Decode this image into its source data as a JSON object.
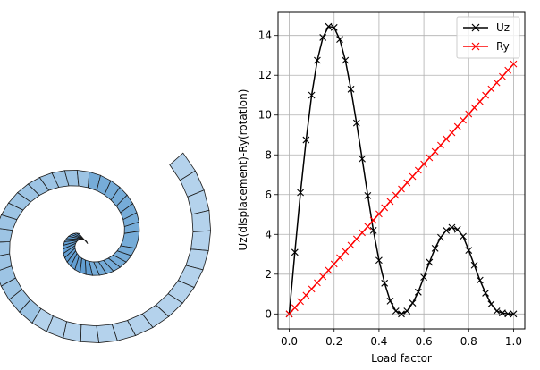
{
  "chart_data": {
    "type": "line",
    "xlabel": "Load factor",
    "ylabel": "Uz(displacement)-Ry(rotation)",
    "xlim": [
      -0.05,
      1.05
    ],
    "ylim": [
      -0.75,
      15.2
    ],
    "xticks": [
      0.0,
      0.2,
      0.4,
      0.6,
      0.8,
      1.0
    ],
    "xtick_labels": [
      "0.0",
      "0.2",
      "0.4",
      "0.6",
      "0.8",
      "1.0"
    ],
    "yticks": [
      0,
      2,
      4,
      6,
      8,
      10,
      12,
      14
    ],
    "ytick_labels": [
      "0",
      "2",
      "4",
      "6",
      "8",
      "10",
      "12",
      "14"
    ],
    "grid": true,
    "legend": {
      "position": "top-right"
    },
    "series": [
      {
        "name": "Uz",
        "color": "#000000",
        "marker": "x",
        "x": [
          0.0,
          0.025,
          0.05,
          0.075,
          0.1,
          0.125,
          0.15,
          0.175,
          0.2,
          0.225,
          0.25,
          0.275,
          0.3,
          0.325,
          0.35,
          0.375,
          0.4,
          0.425,
          0.45,
          0.475,
          0.5,
          0.525,
          0.55,
          0.575,
          0.6,
          0.625,
          0.65,
          0.675,
          0.7,
          0.725,
          0.75,
          0.775,
          0.8,
          0.825,
          0.85,
          0.875,
          0.9,
          0.925,
          0.95,
          0.975,
          1.0
        ],
        "values": [
          0.0,
          3.1,
          6.1,
          8.75,
          11.0,
          12.75,
          13.9,
          14.45,
          14.4,
          13.8,
          12.75,
          11.3,
          9.6,
          7.8,
          5.95,
          4.2,
          2.7,
          1.55,
          0.65,
          0.15,
          0.0,
          0.15,
          0.55,
          1.1,
          1.85,
          2.6,
          3.3,
          3.85,
          4.2,
          4.35,
          4.25,
          3.9,
          3.2,
          2.45,
          1.7,
          1.05,
          0.5,
          0.15,
          0.05,
          0.0,
          0.0
        ]
      },
      {
        "name": "Ry",
        "color": "#ff0000",
        "marker": "x",
        "x": [
          0.0,
          0.025,
          0.05,
          0.075,
          0.1,
          0.125,
          0.15,
          0.175,
          0.2,
          0.225,
          0.25,
          0.275,
          0.3,
          0.325,
          0.35,
          0.375,
          0.4,
          0.425,
          0.45,
          0.475,
          0.5,
          0.525,
          0.55,
          0.575,
          0.6,
          0.625,
          0.65,
          0.675,
          0.7,
          0.725,
          0.75,
          0.775,
          0.8,
          0.825,
          0.85,
          0.875,
          0.9,
          0.925,
          0.95,
          0.975,
          1.0
        ],
        "values": [
          0.0,
          0.314,
          0.628,
          0.942,
          1.257,
          1.571,
          1.885,
          2.199,
          2.513,
          2.827,
          3.142,
          3.456,
          3.77,
          4.084,
          4.398,
          4.712,
          5.027,
          5.341,
          5.655,
          5.969,
          6.283,
          6.597,
          6.912,
          7.226,
          7.54,
          7.854,
          8.168,
          8.482,
          8.796,
          9.111,
          9.425,
          9.739,
          10.053,
          10.367,
          10.681,
          10.996,
          11.31,
          11.624,
          11.938,
          12.252,
          12.566
        ]
      }
    ]
  }
}
